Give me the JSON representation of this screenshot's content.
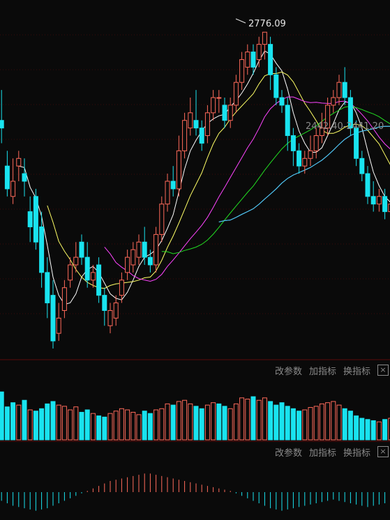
{
  "colors": {
    "up": "#ff6a5a",
    "down": "#19e3ef",
    "ma5": "#ffffff",
    "ma10": "#ffff66",
    "ma20": "#ff44ff",
    "ma30": "#22dd22",
    "ma60": "#cfcfcf",
    "ma120": "#3fc9ff",
    "grid": "#3a0a0a",
    "divider": "#5a0a0a"
  },
  "annotations": {
    "high_label": "2776.09",
    "low_label": "2442.40",
    "low_label_b": "2441.20"
  },
  "toolbars": [
    {
      "change": "改参数",
      "add": "加指标",
      "swap": "换指标",
      "close": "×"
    },
    {
      "change": "改参数",
      "add": "加指标",
      "swap": "换指标",
      "close": "×"
    }
  ],
  "chart_data": [
    {
      "type": "candlestick",
      "ylim": [
        2360,
        2800
      ],
      "grid": true,
      "candles": [
        [
          2570,
          2590,
          2630,
          2560
        ],
        [
          2660,
          2650,
          2700,
          2630
        ],
        [
          2600,
          2570,
          2620,
          2560
        ],
        [
          2560,
          2580,
          2610,
          2550
        ],
        [
          2600,
          2610,
          2620,
          2580
        ],
        [
          2590,
          2580,
          2610,
          2560
        ],
        [
          2540,
          2520,
          2560,
          2500
        ],
        [
          2560,
          2500,
          2570,
          2490
        ],
        [
          2520,
          2460,
          2540,
          2440
        ],
        [
          2460,
          2420,
          2480,
          2400
        ],
        [
          2430,
          2370,
          2450,
          2360
        ],
        [
          2380,
          2400,
          2420,
          2370
        ],
        [
          2410,
          2440,
          2450,
          2400
        ],
        [
          2450,
          2470,
          2480,
          2440
        ],
        [
          2470,
          2480,
          2500,
          2460
        ],
        [
          2500,
          2480,
          2510,
          2470
        ],
        [
          2480,
          2450,
          2500,
          2440
        ],
        [
          2450,
          2460,
          2470,
          2440
        ],
        [
          2470,
          2430,
          2480,
          2420
        ],
        [
          2430,
          2410,
          2440,
          2390
        ],
        [
          2390,
          2410,
          2420,
          2380
        ],
        [
          2400,
          2420,
          2430,
          2390
        ],
        [
          2430,
          2450,
          2460,
          2420
        ],
        [
          2460,
          2480,
          2490,
          2450
        ],
        [
          2470,
          2490,
          2500,
          2460
        ],
        [
          2480,
          2500,
          2510,
          2470
        ],
        [
          2500,
          2480,
          2520,
          2470
        ],
        [
          2480,
          2470,
          2490,
          2460
        ],
        [
          2470,
          2510,
          2520,
          2460
        ],
        [
          2510,
          2550,
          2560,
          2500
        ],
        [
          2550,
          2580,
          2590,
          2540
        ],
        [
          2580,
          2570,
          2600,
          2560
        ],
        [
          2570,
          2620,
          2640,
          2560
        ],
        [
          2620,
          2660,
          2670,
          2610
        ],
        [
          2650,
          2670,
          2690,
          2640
        ],
        [
          2660,
          2650,
          2700,
          2640
        ],
        [
          2650,
          2630,
          2660,
          2620
        ],
        [
          2640,
          2670,
          2680,
          2630
        ],
        [
          2670,
          2690,
          2700,
          2660
        ],
        [
          2690,
          2690,
          2700,
          2670
        ],
        [
          2680,
          2660,
          2690,
          2650
        ],
        [
          2660,
          2680,
          2690,
          2650
        ],
        [
          2680,
          2710,
          2720,
          2670
        ],
        [
          2710,
          2740,
          2750,
          2700
        ],
        [
          2730,
          2750,
          2760,
          2720
        ],
        [
          2750,
          2730,
          2760,
          2720
        ],
        [
          2740,
          2760,
          2770,
          2730
        ],
        [
          2760,
          2776,
          2776.09,
          2740
        ],
        [
          2760,
          2720,
          2770,
          2700
        ],
        [
          2720,
          2690,
          2730,
          2680
        ],
        [
          2690,
          2680,
          2700,
          2670
        ],
        [
          2680,
          2640,
          2690,
          2620
        ],
        [
          2640,
          2620,
          2650,
          2600
        ],
        [
          2620,
          2600,
          2630,
          2590
        ],
        [
          2600,
          2610,
          2620,
          2590
        ],
        [
          2610,
          2620,
          2640,
          2600
        ],
        [
          2620,
          2640,
          2650,
          2610
        ],
        [
          2640,
          2650,
          2670,
          2630
        ],
        [
          2650,
          2680,
          2690,
          2640
        ],
        [
          2680,
          2690,
          2700,
          2670
        ],
        [
          2690,
          2710,
          2720,
          2680
        ],
        [
          2710,
          2690,
          2730,
          2680
        ],
        [
          2690,
          2650,
          2700,
          2640
        ],
        [
          2650,
          2610,
          2660,
          2600
        ],
        [
          2610,
          2590,
          2620,
          2580
        ],
        [
          2590,
          2560,
          2600,
          2550
        ],
        [
          2560,
          2550,
          2580,
          2540
        ],
        [
          2550,
          2560,
          2570,
          2540
        ],
        [
          2560,
          2540,
          2570,
          2530
        ],
        [
          2540,
          2550,
          2560,
          2530
        ],
        [
          2550,
          2560,
          2580,
          2545
        ],
        [
          2560,
          2570,
          2590,
          2550
        ]
      ]
    },
    {
      "type": "bar",
      "ylim": [
        0,
        100
      ],
      "values": [
        70,
        80,
        55,
        62,
        58,
        66,
        50,
        48,
        52,
        60,
        64,
        58,
        56,
        50,
        55,
        46,
        50,
        44,
        40,
        38,
        44,
        48,
        52,
        50,
        46,
        42,
        48,
        44,
        50,
        52,
        60,
        58,
        64,
        66,
        60,
        56,
        52,
        58,
        62,
        60,
        56,
        52,
        60,
        70,
        68,
        72,
        66,
        70,
        64,
        58,
        62,
        56,
        52,
        48,
        50,
        54,
        56,
        60,
        62,
        64,
        58,
        52,
        48,
        40,
        36,
        34,
        32,
        30,
        34,
        36,
        38,
        40
      ],
      "down": [
        1,
        1,
        1,
        1,
        0,
        1,
        0,
        1,
        1,
        1,
        1,
        0,
        0,
        0,
        0,
        1,
        1,
        0,
        1,
        1,
        0,
        0,
        0,
        0,
        0,
        0,
        1,
        1,
        0,
        0,
        0,
        1,
        0,
        0,
        0,
        1,
        1,
        0,
        0,
        1,
        1,
        0,
        0,
        0,
        0,
        1,
        0,
        0,
        1,
        1,
        1,
        1,
        1,
        1,
        0,
        0,
        0,
        0,
        0,
        0,
        0,
        1,
        1,
        1,
        1,
        1,
        1,
        0,
        1,
        0,
        0,
        0
      ]
    },
    {
      "type": "bar",
      "ylim": [
        -45,
        45
      ],
      "values": [
        -10,
        -14,
        -18,
        -22,
        -24,
        -26,
        -28,
        -30,
        -28,
        -26,
        -22,
        -18,
        -14,
        -10,
        -6,
        -2,
        2,
        6,
        10,
        14,
        18,
        20,
        22,
        24,
        26,
        28,
        30,
        30,
        28,
        26,
        24,
        22,
        20,
        18,
        16,
        14,
        12,
        10,
        8,
        6,
        4,
        2,
        -2,
        -6,
        -10,
        -14,
        -18,
        -22,
        -26,
        -28,
        -30,
        -28,
        -26,
        -24,
        -22,
        -20,
        -18,
        -16,
        -14,
        -12,
        -14,
        -16,
        -18,
        -20,
        -22,
        -24,
        -22,
        -20,
        -18,
        -16,
        -14,
        -12
      ]
    }
  ]
}
